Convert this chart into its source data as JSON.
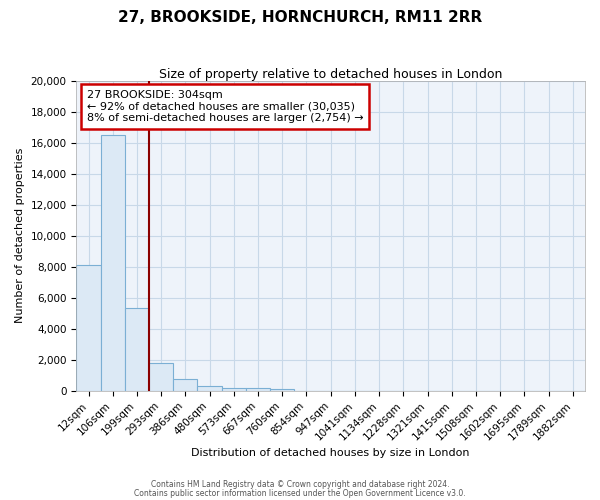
{
  "title": "27, BROOKSIDE, HORNCHURCH, RM11 2RR",
  "subtitle": "Size of property relative to detached houses in London",
  "xlabel": "Distribution of detached houses by size in London",
  "ylabel": "Number of detached properties",
  "bar_labels": [
    "12sqm",
    "106sqm",
    "199sqm",
    "293sqm",
    "386sqm",
    "480sqm",
    "573sqm",
    "667sqm",
    "760sqm",
    "854sqm",
    "947sqm",
    "1041sqm",
    "1134sqm",
    "1228sqm",
    "1321sqm",
    "1415sqm",
    "1508sqm",
    "1602sqm",
    "1695sqm",
    "1789sqm",
    "1882sqm"
  ],
  "bar_values": [
    8100,
    16500,
    5300,
    1800,
    750,
    300,
    200,
    150,
    100,
    0,
    0,
    0,
    0,
    0,
    0,
    0,
    0,
    0,
    0,
    0,
    0
  ],
  "bar_color": "#dce9f5",
  "bar_edge_color": "#7bafd4",
  "property_line_x": 2.5,
  "property_line_color": "#8b0000",
  "annotation_text": "27 BROOKSIDE: 304sqm\n← 92% of detached houses are smaller (30,035)\n8% of semi-detached houses are larger (2,754) →",
  "annotation_box_color": "#ffffff",
  "annotation_box_edge_color": "#cc0000",
  "ylim": [
    0,
    20000
  ],
  "yticks": [
    0,
    2000,
    4000,
    6000,
    8000,
    10000,
    12000,
    14000,
    16000,
    18000,
    20000
  ],
  "footer_line1": "Contains HM Land Registry data © Crown copyright and database right 2024.",
  "footer_line2": "Contains public sector information licensed under the Open Government Licence v3.0.",
  "bg_color": "#ffffff",
  "plot_bg_color": "#eef3fa",
  "grid_color": "#c8d8e8",
  "title_fontsize": 11,
  "subtitle_fontsize": 9,
  "axis_label_fontsize": 8,
  "tick_fontsize": 7.5
}
